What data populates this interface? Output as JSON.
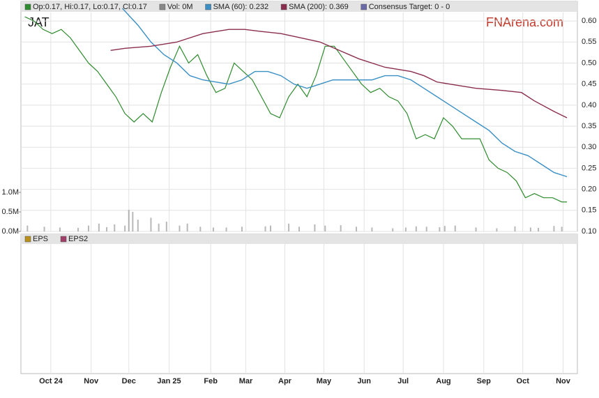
{
  "chart_data": {
    "type": "line",
    "ticker": "JAT",
    "watermark": "FNArena.com",
    "legend_extra": {
      "name": "Consensus Target: 0 - 0",
      "color": "#6a6aa8"
    },
    "xlim": [
      0,
      428
    ],
    "xticks": [
      {
        "value": 23,
        "label": "Oct 24"
      },
      {
        "value": 54,
        "label": "Nov"
      },
      {
        "value": 83,
        "label": "Dec"
      },
      {
        "value": 114,
        "label": "Jan 25"
      },
      {
        "value": 146,
        "label": "Feb"
      },
      {
        "value": 173,
        "label": "Mar"
      },
      {
        "value": 203,
        "label": "Apr"
      },
      {
        "value": 233,
        "label": "May"
      },
      {
        "value": 264,
        "label": "Jun"
      },
      {
        "value": 294,
        "label": "Jul"
      },
      {
        "value": 325,
        "label": "Aug"
      },
      {
        "value": 356,
        "label": "Sep"
      },
      {
        "value": 386,
        "label": "Oct"
      },
      {
        "value": 417,
        "label": "Nov"
      }
    ],
    "ylim": [
      0.1,
      0.62
    ],
    "yticks": [
      {
        "value": 0.6,
        "label": "0.60"
      },
      0.55,
      {
        "value": 0.5,
        "label": "0.50"
      },
      0.45,
      {
        "value": 0.4,
        "label": "0.40"
      },
      0.35,
      {
        "value": 0.3,
        "label": "0.30"
      },
      0.25,
      {
        "value": 0.2,
        "label": "0.20"
      },
      0.15,
      {
        "value": 0.1,
        "label": "0.10"
      }
    ],
    "grid": true,
    "series": [
      {
        "name": "Op:0.17, Hi:0.17, Lo:0.17, Cl:0.17",
        "color": "#2e8b2e",
        "x": [
          3,
          10,
          17,
          24,
          31,
          38,
          45,
          52,
          59,
          66,
          73,
          80,
          87,
          94,
          101,
          108,
          115,
          122,
          129,
          136,
          143,
          150,
          157,
          164,
          171,
          178,
          185,
          192,
          199,
          206,
          213,
          220,
          227,
          234,
          241,
          248,
          255,
          262,
          269,
          276,
          283,
          290,
          297,
          304,
          311,
          318,
          325,
          332,
          339,
          346,
          353,
          360,
          367,
          374,
          381,
          388,
          395,
          402,
          409,
          416,
          420
        ],
        "values": [
          0.61,
          0.6,
          0.58,
          0.57,
          0.58,
          0.56,
          0.53,
          0.5,
          0.48,
          0.45,
          0.42,
          0.38,
          0.36,
          0.38,
          0.36,
          0.43,
          0.49,
          0.54,
          0.5,
          0.52,
          0.47,
          0.43,
          0.44,
          0.5,
          0.48,
          0.46,
          0.42,
          0.38,
          0.37,
          0.42,
          0.45,
          0.42,
          0.47,
          0.54,
          0.54,
          0.51,
          0.48,
          0.45,
          0.43,
          0.44,
          0.42,
          0.41,
          0.38,
          0.32,
          0.33,
          0.32,
          0.37,
          0.35,
          0.32,
          0.32,
          0.32,
          0.27,
          0.25,
          0.24,
          0.22,
          0.18,
          0.19,
          0.18,
          0.18,
          0.17,
          0.17
        ]
      },
      {
        "name": "SMA (60): 0.232",
        "color": "#3a8fc4",
        "x": [
          78,
          90,
          100,
          110,
          120,
          130,
          140,
          150,
          160,
          170,
          180,
          190,
          200,
          210,
          220,
          230,
          240,
          250,
          260,
          270,
          280,
          290,
          300,
          310,
          320,
          330,
          340,
          350,
          360,
          370,
          380,
          390,
          400,
          410,
          420
        ],
        "values": [
          0.63,
          0.59,
          0.55,
          0.52,
          0.5,
          0.47,
          0.46,
          0.455,
          0.45,
          0.46,
          0.48,
          0.48,
          0.47,
          0.45,
          0.44,
          0.45,
          0.46,
          0.46,
          0.46,
          0.46,
          0.47,
          0.47,
          0.46,
          0.44,
          0.42,
          0.4,
          0.38,
          0.36,
          0.34,
          0.31,
          0.29,
          0.28,
          0.26,
          0.24,
          0.23
        ]
      },
      {
        "name": "SMA (200): 0.369",
        "color": "#8b2d4e",
        "x": [
          69,
          80,
          100,
          120,
          140,
          160,
          172,
          185,
          200,
          215,
          230,
          245,
          260,
          280,
          300,
          310,
          320,
          330,
          350,
          370,
          385,
          395,
          410,
          420
        ],
        "values": [
          0.53,
          0.535,
          0.54,
          0.55,
          0.57,
          0.58,
          0.58,
          0.575,
          0.57,
          0.56,
          0.55,
          0.53,
          0.51,
          0.49,
          0.48,
          0.47,
          0.455,
          0.45,
          0.44,
          0.435,
          0.43,
          0.41,
          0.385,
          0.37
        ]
      }
    ],
    "volume": {
      "name": "Vol: 0M",
      "color": "#888888",
      "ylim": [
        0,
        1000000
      ],
      "yticks": [
        {
          "value": 0,
          "label": "0.0M"
        },
        {
          "value": 500000,
          "label": "0.5M"
        },
        {
          "value": 1000000,
          "label": "1.0M"
        }
      ],
      "x": [
        5,
        18,
        30,
        44,
        52,
        60,
        66,
        72,
        80,
        83,
        86,
        90,
        100,
        106,
        112,
        122,
        128,
        138,
        148,
        158,
        170,
        188,
        192,
        206,
        214,
        226,
        234,
        246,
        258,
        270,
        286,
        296,
        304,
        312,
        322,
        326,
        334,
        350,
        366,
        380,
        392,
        398,
        410,
        416
      ],
      "values": [
        150000,
        120000,
        100000,
        90000,
        150000,
        200000,
        110000,
        180000,
        150000,
        550000,
        500000,
        300000,
        350000,
        200000,
        250000,
        150000,
        200000,
        120000,
        100000,
        100000,
        120000,
        130000,
        150000,
        200000,
        120000,
        180000,
        150000,
        160000,
        120000,
        100000,
        80000,
        100000,
        130000,
        120000,
        110000,
        140000,
        150000,
        100000,
        80000,
        130000,
        100000,
        90000,
        140000,
        120000
      ]
    },
    "lower_panel": {
      "series": [
        {
          "name": "EPS",
          "color": "#b8901a"
        },
        {
          "name": "EPS2",
          "color": "#a0406a"
        }
      ]
    }
  }
}
